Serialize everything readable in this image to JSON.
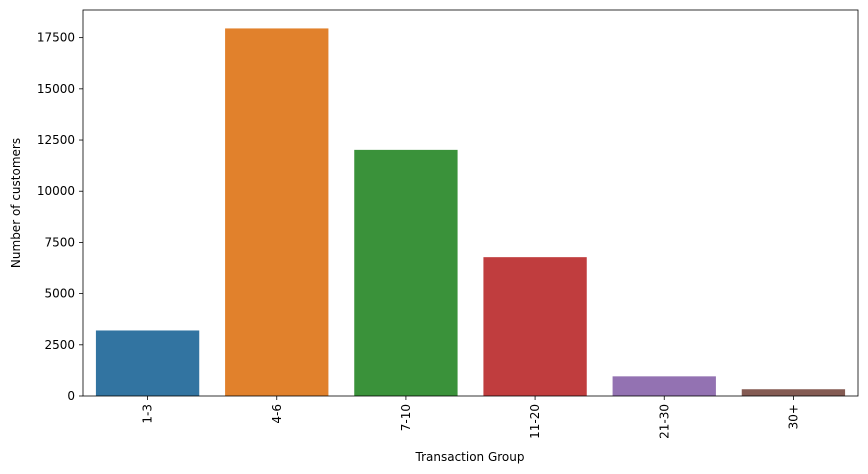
{
  "chart_data": {
    "type": "bar",
    "categories": [
      "1-3",
      "4-6",
      "7-10",
      "11-20",
      "21-30",
      "30+"
    ],
    "values": [
      3200,
      17950,
      12020,
      6780,
      960,
      330
    ],
    "colors": [
      "#3274a1",
      "#e1812c",
      "#3a923a",
      "#c03d3e",
      "#9372b2",
      "#845b53"
    ],
    "xlabel": "Transaction Group",
    "ylabel": "Number of customers",
    "ylim": [
      0,
      18850
    ],
    "yticks": [
      0,
      2500,
      5000,
      7500,
      10000,
      12500,
      15000,
      17500
    ],
    "ytick_labels": [
      "0",
      "2500",
      "5000",
      "7500",
      "10000",
      "12500",
      "15000",
      "17500"
    ],
    "grid": false,
    "legend": "none"
  }
}
